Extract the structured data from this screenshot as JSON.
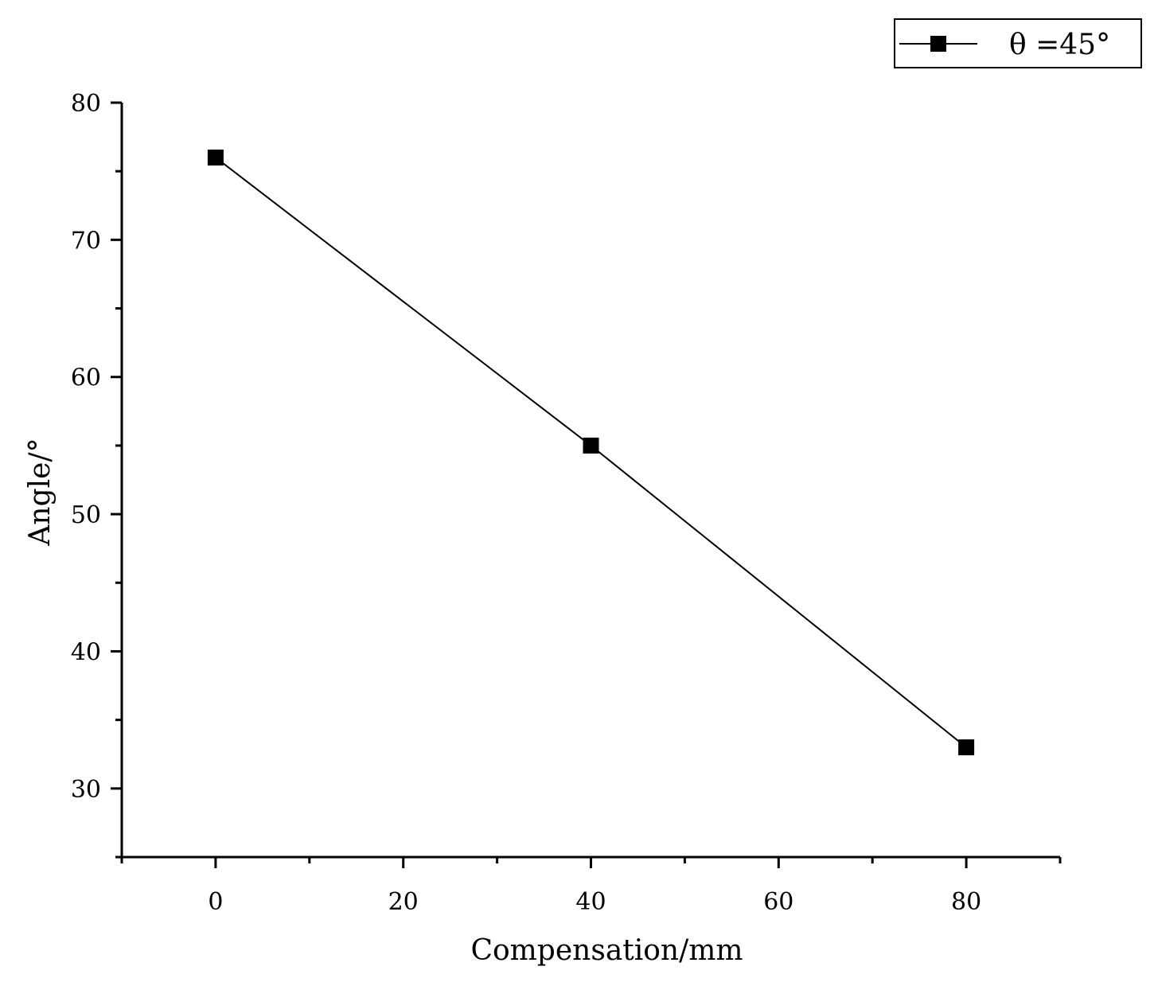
{
  "chart_data": {
    "type": "line",
    "title": "",
    "xlabel": "Compensation/mm",
    "ylabel": "Angle/°",
    "xlim": [
      -10,
      90
    ],
    "ylim": [
      25,
      80
    ],
    "xticks": [
      0,
      20,
      40,
      60,
      80
    ],
    "yticks": [
      30,
      40,
      50,
      60,
      70,
      80
    ],
    "x_minor_step": 10,
    "y_minor_step": 5,
    "grid": false,
    "legend_position": "top-right",
    "series": [
      {
        "name": "θ =45°",
        "marker": "square",
        "color": "#000000",
        "x": [
          0,
          40,
          80
        ],
        "y": [
          76,
          55,
          33
        ]
      }
    ]
  }
}
